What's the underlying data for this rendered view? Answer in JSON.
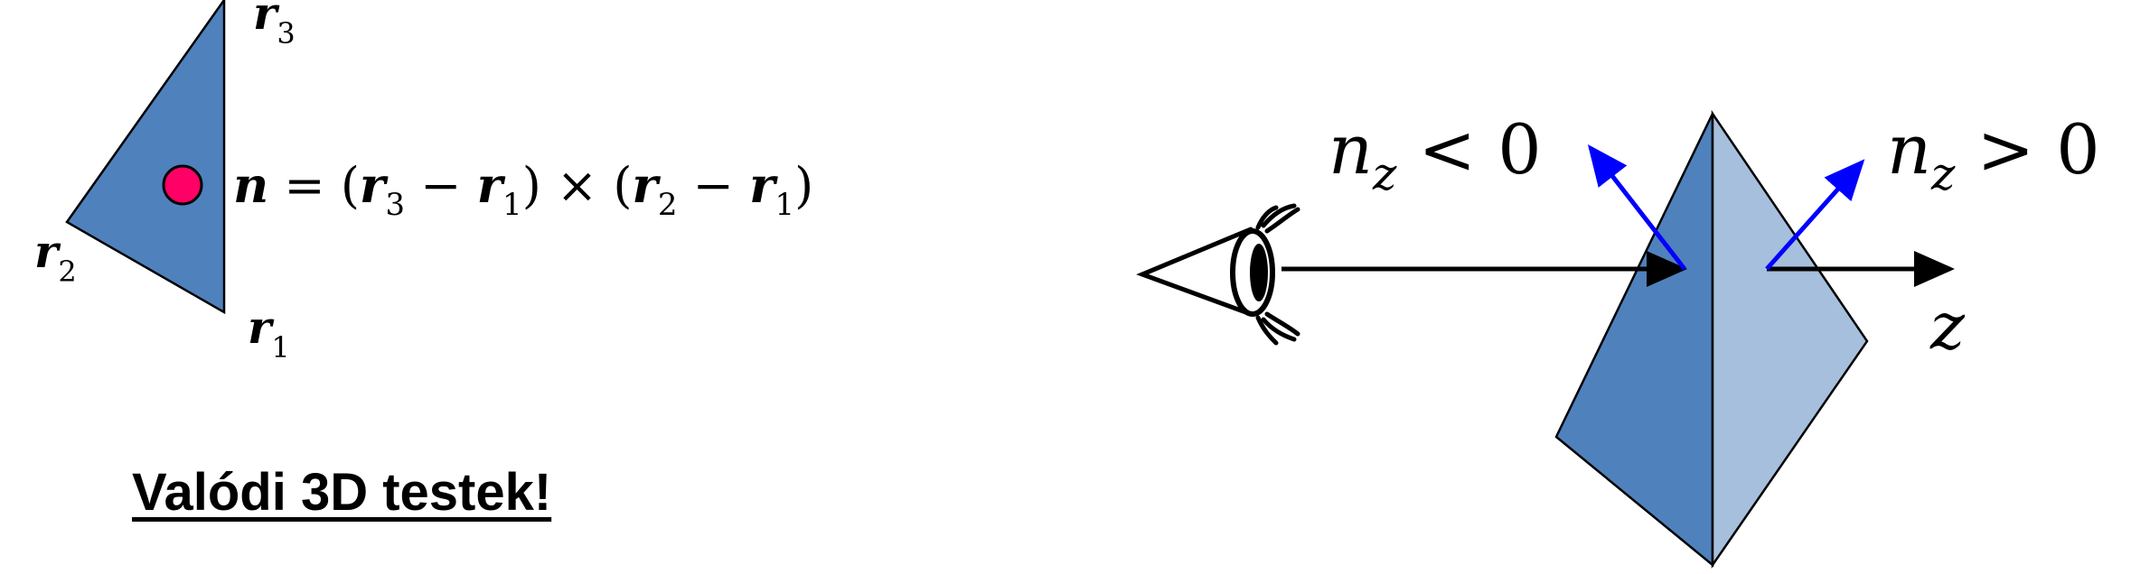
{
  "labels": {
    "r3": {
      "symbol": "r",
      "sub": "3"
    },
    "r2": {
      "symbol": "r",
      "sub": "2"
    },
    "r1": {
      "symbol": "r",
      "sub": "1"
    },
    "normal_formula": {
      "n": "n",
      "eq": " = (",
      "r3": "r",
      "r3_sub": "3",
      "minus1": " − ",
      "r1a": "r",
      "r1a_sub": "1",
      "mid": ") × (",
      "r2": "r",
      "r2_sub": "2",
      "minus2": " − ",
      "r1b": "r",
      "r1b_sub": "1",
      "close": ")"
    },
    "nz_neg": {
      "n": "n",
      "sub": "z",
      "rel": " < 0"
    },
    "nz_pos": {
      "n": "n",
      "sub": "z",
      "rel": " > 0"
    },
    "z_axis": "z"
  },
  "heading": "Valódi 3D testek!",
  "colors": {
    "triangle_fill": "#4f81bd",
    "prism_dark": "#4f81bd",
    "prism_light": "#a6bfdd",
    "normal_arrows": "#0000ff",
    "centroid_dot": "#ff0066",
    "stroke": "#000000"
  }
}
